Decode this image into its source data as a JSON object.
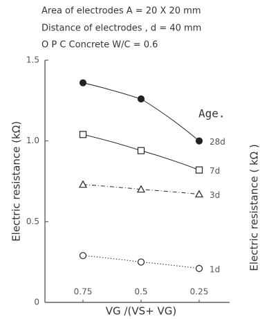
{
  "chart_data": {
    "type": "line",
    "title_lines": [
      "Area of electrodes  A = 20 X 20 mm",
      "Distance of electrodes , d = 40 mm",
      "O P C Concrete     W/C = 0.6"
    ],
    "y_label": "Electric resistance (kΩ)",
    "x_label": "VG /(VS+ VG)",
    "second_y_label": "Electric resistance ( kΩ )",
    "legend_title": "Age.",
    "categories": [
      "0.75",
      "0.5",
      "0.25"
    ],
    "ylim": [
      0,
      1.5
    ],
    "yticks": [
      0,
      0.5,
      {
        "value": 1,
        "label": "1.0"
      },
      1.5
    ],
    "series": [
      {
        "name": "28d",
        "color": "#222222",
        "marker": "filled-circle",
        "dash": "solid",
        "values": [
          1.36,
          1.26,
          1.0
        ]
      },
      {
        "name": "7d",
        "color": "#222222",
        "marker": "square",
        "dash": "solid",
        "values": [
          1.04,
          0.94,
          0.82
        ]
      },
      {
        "name": "3d",
        "color": "#222222",
        "marker": "triangle",
        "dash": "dashdot",
        "values": [
          0.73,
          0.7,
          0.67
        ]
      },
      {
        "name": "1d",
        "color": "#222222",
        "marker": "circle",
        "dash": "dotted",
        "values": [
          0.29,
          0.25,
          0.21
        ]
      }
    ]
  }
}
